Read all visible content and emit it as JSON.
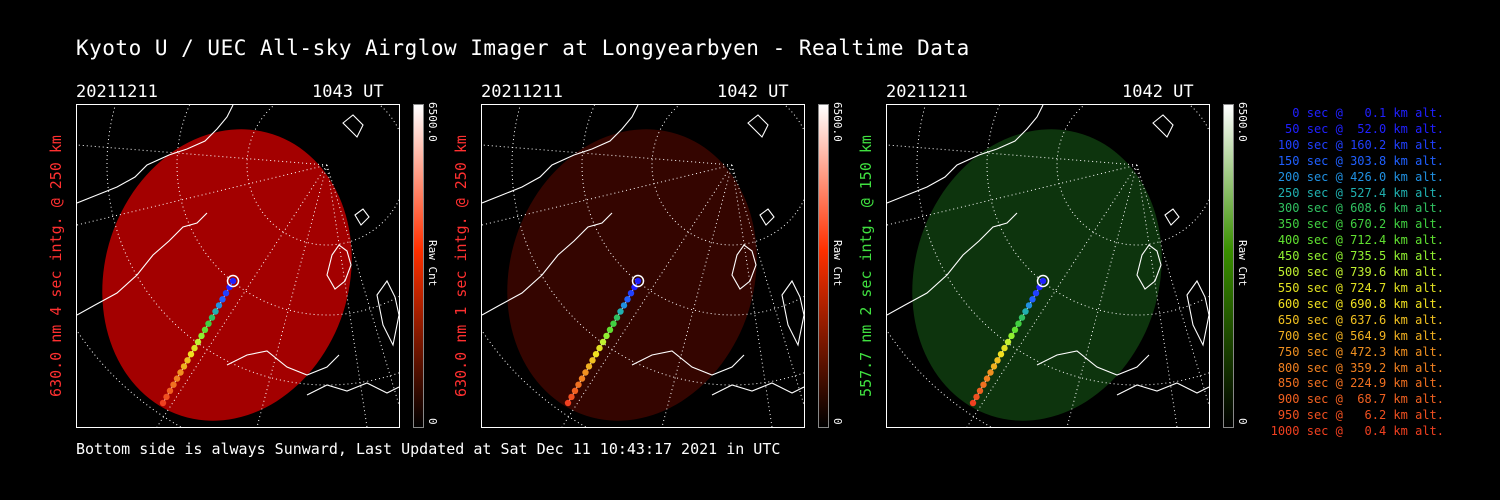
{
  "title": "Kyoto U / UEC All-sky Airglow Imager at Longyearbyen - Realtime Data",
  "footer": "Bottom side is always Sunward, Last Updated at Sat Dec 11 10:43:17 2021 in UTC",
  "panels": [
    {
      "date": "20211211",
      "time": "1043 UT",
      "ylabel": "630.0 nm 4 sec intg. @ 250 km",
      "ylabel_color": "#ff3030",
      "cmax": "6500.0",
      "cmin": "0",
      "cunit": "Raw Cnt",
      "bar_color": "#ff3000",
      "blob_color": "#c00000",
      "blob_opacity": 0.85
    },
    {
      "date": "20211211",
      "time": "1042 UT",
      "ylabel": "630.0 nm 1 sec intg. @ 250 km",
      "ylabel_color": "#ff3030",
      "cmax": "6500.0",
      "cmin": "0",
      "cunit": "Raw Cnt",
      "bar_color": "#ff3000",
      "blob_color": "#3a0500",
      "blob_opacity": 0.9
    },
    {
      "date": "20211211",
      "time": "1042 UT",
      "ylabel": "557.7 nm 2 sec intg. @ 150 km",
      "ylabel_color": "#40e040",
      "cmax": "6500.0",
      "cmin": "0",
      "cunit": "Raw Cnt",
      "bar_color": "#3a9000",
      "blob_color": "#0e3a0e",
      "blob_opacity": 0.9
    }
  ],
  "legend": [
    {
      "text": "0 sec @   0.1 km alt.",
      "color": "#2020ff"
    },
    {
      "text": "50 sec @  52.0 km alt.",
      "color": "#2020ff"
    },
    {
      "text": "100 sec @ 160.2 km alt.",
      "color": "#2040ff"
    },
    {
      "text": "150 sec @ 303.8 km alt.",
      "color": "#2060ff"
    },
    {
      "text": "200 sec @ 426.0 km alt.",
      "color": "#2090e0"
    },
    {
      "text": "250 sec @ 527.4 km alt.",
      "color": "#20b0b0"
    },
    {
      "text": "300 sec @ 608.6 km alt.",
      "color": "#30c060"
    },
    {
      "text": "350 sec @ 670.2 km alt.",
      "color": "#40d040"
    },
    {
      "text": "400 sec @ 712.4 km alt.",
      "color": "#60e030"
    },
    {
      "text": "450 sec @ 735.5 km alt.",
      "color": "#90f030"
    },
    {
      "text": "500 sec @ 739.6 km alt.",
      "color": "#c0f030"
    },
    {
      "text": "550 sec @ 724.7 km alt.",
      "color": "#e0e020"
    },
    {
      "text": "600 sec @ 690.8 km alt.",
      "color": "#f0e020"
    },
    {
      "text": "650 sec @ 637.6 km alt.",
      "color": "#f0c020"
    },
    {
      "text": "700 sec @ 564.9 km alt.",
      "color": "#f0b020"
    },
    {
      "text": "750 sec @ 472.3 km alt.",
      "color": "#f09020"
    },
    {
      "text": "800 sec @ 359.2 km alt.",
      "color": "#f08020"
    },
    {
      "text": "850 sec @ 224.9 km alt.",
      "color": "#f07020"
    },
    {
      "text": "900 sec @  68.7 km alt.",
      "color": "#f06020"
    },
    {
      "text": "950 sec @   6.2 km alt.",
      "color": "#f05020"
    },
    {
      "text": "1000 sec @   0.4 km alt.",
      "color": "#f04020"
    }
  ]
}
